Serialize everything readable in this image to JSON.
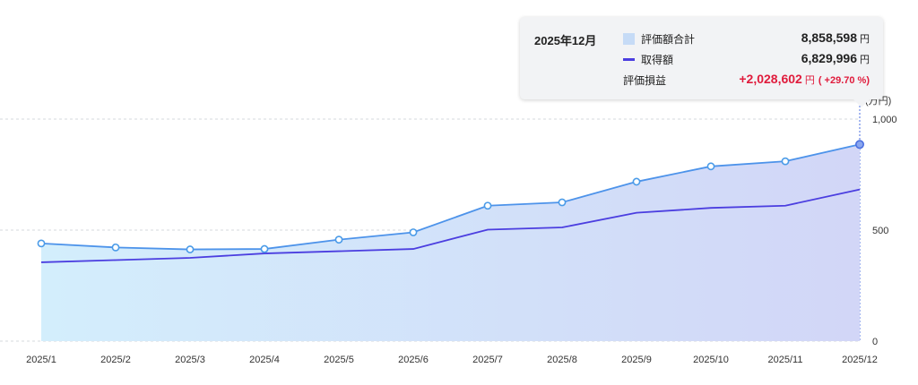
{
  "chart_data": {
    "type": "area",
    "categories": [
      "2025/1",
      "2025/2",
      "2025/3",
      "2025/4",
      "2025/5",
      "2025/6",
      "2025/7",
      "2025/8",
      "2025/9",
      "2025/10",
      "2025/11",
      "2025/12"
    ],
    "series": [
      {
        "name": "評価額合計",
        "type": "area",
        "values": [
          440,
          422,
          413,
          415,
          457,
          490,
          610,
          625,
          718,
          787,
          810,
          885.8598
        ],
        "color": "#4a8fe7"
      },
      {
        "name": "取得額",
        "type": "line",
        "values": [
          355,
          365,
          375,
          395,
          405,
          415,
          502,
          512,
          578,
          600,
          610,
          682.9996
        ],
        "color": "#4b3ee0"
      }
    ],
    "yunit": "(万円)",
    "ylim": [
      0,
      1000
    ],
    "yticks": [
      "0",
      "500",
      "1,000"
    ],
    "grid": true
  },
  "tooltip": {
    "period": "2025年12月",
    "rows": [
      {
        "label": "評価額合計",
        "value": "8,858,598",
        "unit": "円"
      },
      {
        "label": "取得額",
        "value": "6,829,996",
        "unit": "円"
      },
      {
        "label": "評価損益",
        "value": "+2,028,602",
        "unit": "円",
        "pct": "( +29.70 %)"
      }
    ]
  }
}
